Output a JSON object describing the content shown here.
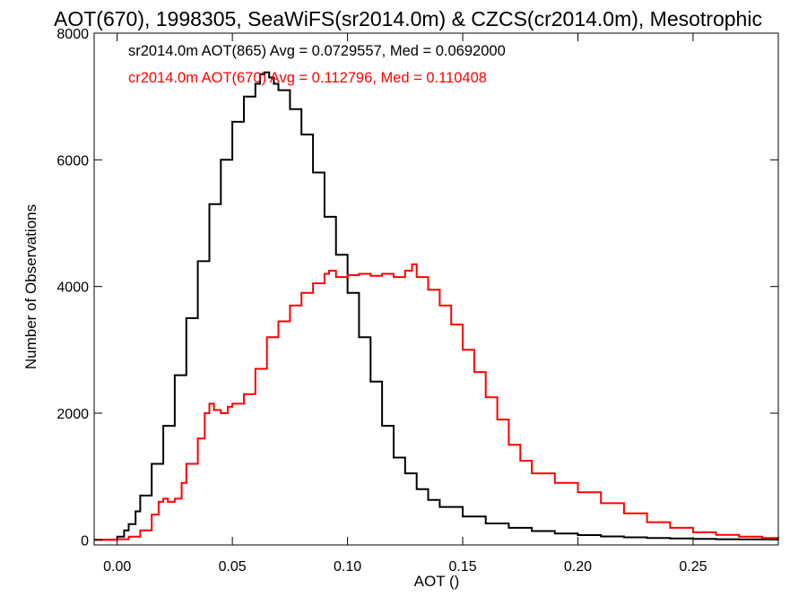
{
  "chart_data": {
    "type": "line",
    "title": "AOT(670), 1998305, SeaWiFS(sr2014.0m) & CZCS(cr2014.0m), Mesotrophic",
    "xlabel": "AOT ()",
    "ylabel": "Number of Observations",
    "xlim": [
      -0.01,
      0.287
    ],
    "ylim": [
      -80,
      8000
    ],
    "x_ticks": [
      "0.00",
      "0.05",
      "0.10",
      "0.15",
      "0.20",
      "0.25"
    ],
    "x_tick_values": [
      0.0,
      0.05,
      0.1,
      0.15,
      0.2,
      0.25
    ],
    "y_ticks": [
      "0",
      "2000",
      "4000",
      "6000",
      "8000"
    ],
    "y_tick_values": [
      0,
      2000,
      4000,
      6000,
      8000
    ],
    "grid": false,
    "legend_position": "top-left",
    "line_style": "step",
    "series": [
      {
        "name": "sr2014.0m AOT(865) Avg = 0.0729557, Med = 0.0692000",
        "color": "#000000",
        "x": [
          -0.01,
          -0.005,
          0.0,
          0.003,
          0.005,
          0.008,
          0.01,
          0.015,
          0.02,
          0.025,
          0.03,
          0.035,
          0.04,
          0.045,
          0.05,
          0.055,
          0.06,
          0.062,
          0.064,
          0.066,
          0.068,
          0.07,
          0.075,
          0.08,
          0.085,
          0.09,
          0.095,
          0.1,
          0.105,
          0.11,
          0.115,
          0.12,
          0.125,
          0.13,
          0.135,
          0.14,
          0.15,
          0.16,
          0.17,
          0.18,
          0.19,
          0.2,
          0.21,
          0.22,
          0.23,
          0.24,
          0.25,
          0.26,
          0.27,
          0.287
        ],
        "values": [
          0,
          0,
          50,
          150,
          250,
          450,
          700,
          1200,
          1800,
          2600,
          3500,
          4400,
          5300,
          6000,
          6600,
          7000,
          7200,
          7350,
          7380,
          7300,
          7200,
          7100,
          6800,
          6400,
          5800,
          5100,
          4500,
          3900,
          3200,
          2500,
          1800,
          1300,
          1050,
          800,
          630,
          520,
          370,
          260,
          190,
          140,
          100,
          75,
          55,
          40,
          30,
          22,
          15,
          10,
          8,
          5
        ]
      },
      {
        "name": "cr2014.0m AOT(670) Avg = 0.112796, Med = 0.110408",
        "color": "#ff0000",
        "x": [
          -0.01,
          -0.005,
          0.0,
          0.005,
          0.01,
          0.015,
          0.018,
          0.02,
          0.022,
          0.025,
          0.028,
          0.03,
          0.035,
          0.038,
          0.04,
          0.042,
          0.045,
          0.048,
          0.05,
          0.055,
          0.06,
          0.065,
          0.07,
          0.075,
          0.08,
          0.085,
          0.09,
          0.092,
          0.095,
          0.1,
          0.105,
          0.11,
          0.115,
          0.12,
          0.125,
          0.128,
          0.13,
          0.135,
          0.14,
          0.145,
          0.15,
          0.155,
          0.16,
          0.165,
          0.17,
          0.175,
          0.18,
          0.19,
          0.2,
          0.21,
          0.22,
          0.23,
          0.24,
          0.25,
          0.26,
          0.27,
          0.28,
          0.287
        ],
        "values": [
          0,
          0,
          10,
          50,
          150,
          400,
          600,
          650,
          600,
          650,
          900,
          1200,
          1600,
          2000,
          2150,
          2050,
          2000,
          2100,
          2150,
          2300,
          2700,
          3200,
          3450,
          3700,
          3900,
          4050,
          4200,
          4250,
          4150,
          4180,
          4200,
          4170,
          4200,
          4150,
          4250,
          4350,
          4150,
          3950,
          3700,
          3400,
          3000,
          2650,
          2250,
          1900,
          1500,
          1250,
          1050,
          900,
          750,
          580,
          420,
          280,
          190,
          120,
          80,
          50,
          30,
          5
        ]
      }
    ]
  }
}
